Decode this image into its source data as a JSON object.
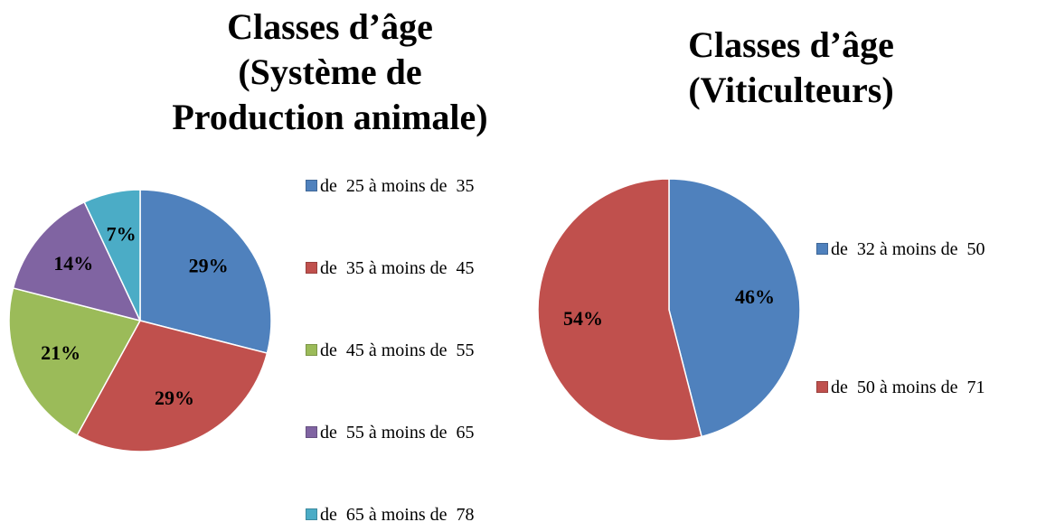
{
  "chart_data": [
    {
      "type": "pie",
      "title": "Classes d’âge (Système de Production animale)",
      "categories": [
        "de  25 à moins de  35",
        "de  35 à moins de  45",
        "de  45 à moins de  55",
        "de  55 à moins de  65",
        "de  65 à moins de  78"
      ],
      "values": [
        29,
        29,
        21,
        14,
        7
      ],
      "value_labels": [
        "29%",
        "29%",
        "21%",
        "14%",
        "7%"
      ],
      "colors": [
        "#4f81bd",
        "#c0504d",
        "#9bbb59",
        "#8064a2",
        "#4bacc6"
      ]
    },
    {
      "type": "pie",
      "title": "Classes d’âge (Viticulteurs)",
      "categories": [
        "de  32 à moins de  50",
        "de  50 à moins de  71"
      ],
      "values": [
        46,
        54
      ],
      "value_labels": [
        "46%",
        "54%"
      ],
      "colors": [
        "#4f81bd",
        "#c0504d"
      ]
    }
  ]
}
